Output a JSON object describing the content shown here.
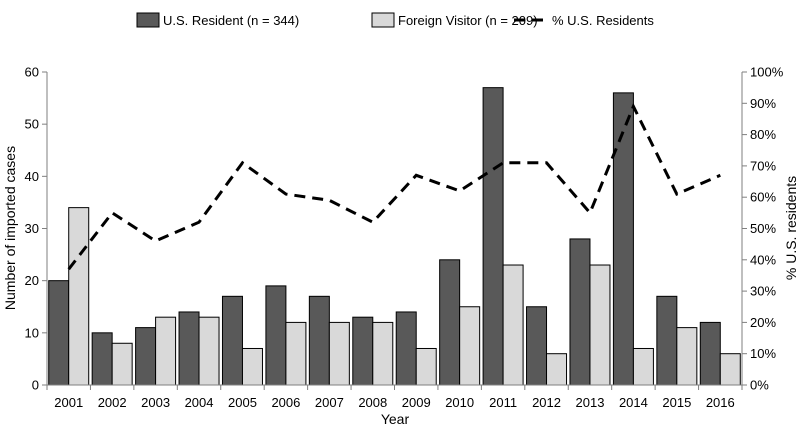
{
  "chart_data": {
    "type": "bar",
    "categories": [
      "2001",
      "2002",
      "2003",
      "2004",
      "2005",
      "2006",
      "2007",
      "2008",
      "2009",
      "2010",
      "2011",
      "2012",
      "2013",
      "2014",
      "2015",
      "2016"
    ],
    "series": [
      {
        "name": "U.S. Resident (n = 344)",
        "type": "bar",
        "axis": "left",
        "color": "#595959",
        "values": [
          20,
          10,
          11,
          14,
          17,
          19,
          17,
          13,
          14,
          24,
          57,
          15,
          28,
          56,
          17,
          12
        ]
      },
      {
        "name": "Foreign Visitor (n = 209)",
        "type": "bar",
        "axis": "left",
        "color": "#d9d9d9",
        "values": [
          34,
          8,
          13,
          13,
          7,
          12,
          12,
          12,
          7,
          15,
          23,
          6,
          23,
          7,
          11,
          6
        ]
      },
      {
        "name": "% U.S. Residents",
        "type": "line",
        "axis": "right",
        "color": "#000000",
        "dash": "dashed",
        "values": [
          37,
          55,
          46,
          52,
          71,
          61,
          59,
          52,
          67,
          62,
          71,
          71,
          55,
          89,
          61,
          67
        ]
      }
    ],
    "xlabel": "Year",
    "ylabel": "Number of imported cases",
    "ylabel_right": "% U.S. residents",
    "ylim": [
      0,
      60
    ],
    "ylim_right": [
      0,
      100
    ],
    "yticks": [
      "0",
      "10",
      "20",
      "30",
      "40",
      "50",
      "60"
    ],
    "yticks_right": [
      "0%",
      "10%",
      "20%",
      "30%",
      "40%",
      "50%",
      "60%",
      "70%",
      "80%",
      "90%",
      "100%"
    ],
    "grid": false,
    "legend_position": "top"
  }
}
